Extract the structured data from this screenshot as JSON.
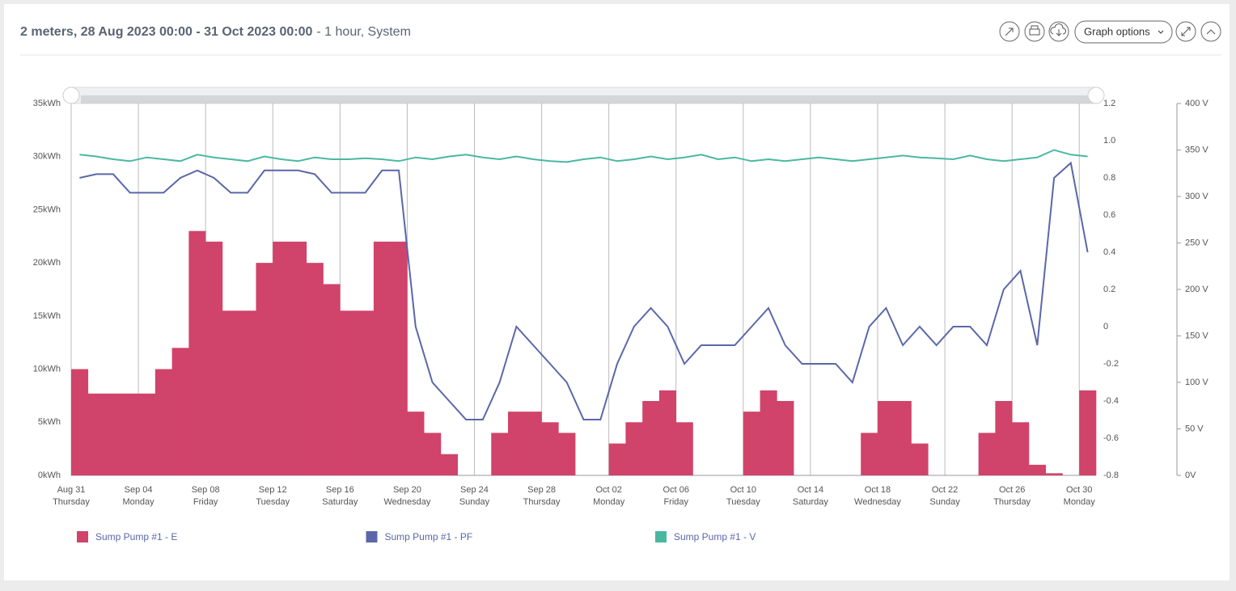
{
  "header": {
    "title_main": "2 meters, 28 Aug 2023 00:00 - 31 Oct 2023 00:00",
    "title_detail": "- 1 hour, System",
    "graph_options_button": "Graph options"
  },
  "chart_data": {
    "type": "combo",
    "categories": [
      "Aug 31",
      null,
      null,
      null,
      "Sep 04",
      null,
      null,
      null,
      "Sep 08",
      null,
      null,
      null,
      "Sep 12",
      null,
      null,
      null,
      "Sep 16",
      null,
      null,
      null,
      "Sep 20",
      null,
      null,
      null,
      "Sep 24",
      null,
      null,
      null,
      "Sep 28",
      null,
      null,
      null,
      "Oct 02",
      null,
      null,
      null,
      "Oct 06",
      null,
      null,
      null,
      "Oct 10",
      null,
      null,
      null,
      "Oct 14",
      null,
      null,
      null,
      "Oct 18",
      null,
      null,
      null,
      "Oct 22",
      null,
      null,
      null,
      "Oct 26",
      null,
      null,
      null,
      "Oct 30"
    ],
    "weekdays": [
      "Thursday",
      null,
      null,
      null,
      "Monday",
      null,
      null,
      null,
      "Friday",
      null,
      null,
      null,
      "Tuesday",
      null,
      null,
      null,
      "Saturday",
      null,
      null,
      null,
      "Wednesday",
      null,
      null,
      null,
      "Sunday",
      null,
      null,
      null,
      "Thursday",
      null,
      null,
      null,
      "Monday",
      null,
      null,
      null,
      "Friday",
      null,
      null,
      null,
      "Tuesday",
      null,
      null,
      null,
      "Saturday",
      null,
      null,
      null,
      "Wednesday",
      null,
      null,
      null,
      "Sunday",
      null,
      null,
      null,
      "Thursday",
      null,
      null,
      null,
      "Monday"
    ],
    "series": [
      {
        "name": "Sump Pump #1 - E",
        "type": "bar",
        "axis": "y",
        "color": "#d0436a",
        "values": [
          10,
          7.7,
          7.7,
          7.7,
          7.7,
          10,
          12,
          23,
          22,
          15.5,
          15.5,
          20,
          22,
          22,
          20,
          18,
          15.5,
          15.5,
          22,
          22,
          6,
          4,
          2,
          0,
          0,
          4,
          6,
          6,
          5,
          4,
          0,
          0,
          3,
          5,
          7,
          8,
          5,
          0,
          0,
          0,
          6,
          8,
          7,
          0,
          0,
          0,
          0,
          4,
          7,
          7,
          3,
          0,
          0,
          0,
          4,
          7,
          5,
          1,
          0.2,
          0,
          8
        ]
      },
      {
        "name": "Sump Pump #1 - PF",
        "type": "line",
        "axis": "y2",
        "color": "#5b67a8",
        "values": [
          0.8,
          0.82,
          0.82,
          0.72,
          0.72,
          0.72,
          0.8,
          0.84,
          0.8,
          0.72,
          0.72,
          0.84,
          0.84,
          0.84,
          0.82,
          0.72,
          0.72,
          0.72,
          0.84,
          0.84,
          0,
          -0.3,
          -0.4,
          -0.5,
          -0.5,
          -0.3,
          0,
          -0.1,
          -0.2,
          -0.3,
          -0.5,
          -0.5,
          -0.2,
          0,
          0.1,
          0,
          -0.2,
          -0.1,
          -0.1,
          -0.1,
          0,
          0.1,
          -0.1,
          -0.2,
          -0.2,
          -0.2,
          -0.3,
          0,
          0.1,
          -0.1,
          0,
          -0.1,
          0,
          0,
          -0.1,
          0.2,
          0.3,
          -0.1,
          0.8,
          0.88,
          0.4
        ]
      },
      {
        "name": "Sump Pump #1 - V",
        "type": "line",
        "axis": "y3",
        "color": "#4ab8a0",
        "values": [
          345,
          343,
          340,
          338,
          342,
          340,
          338,
          345,
          342,
          340,
          338,
          343,
          340,
          338,
          342,
          340,
          340,
          341,
          340,
          338,
          342,
          340,
          343,
          345,
          342,
          340,
          343,
          340,
          338,
          337,
          340,
          342,
          338,
          340,
          343,
          340,
          342,
          345,
          340,
          342,
          338,
          340,
          338,
          340,
          342,
          340,
          338,
          340,
          342,
          344,
          342,
          341,
          340,
          344,
          340,
          338,
          340,
          342,
          350,
          345,
          343
        ]
      }
    ],
    "ylim": [
      0,
      35
    ],
    "yticks": [
      {
        "value": 0,
        "label": "0kWh"
      },
      {
        "value": 5,
        "label": "5kWh"
      },
      {
        "value": 10,
        "label": "10kWh"
      },
      {
        "value": 15,
        "label": "15kWh"
      },
      {
        "value": 20,
        "label": "20kWh"
      },
      {
        "value": 25,
        "label": "25kWh"
      },
      {
        "value": 30,
        "label": "30kWh"
      },
      {
        "value": 35,
        "label": "35kWh"
      }
    ],
    "y2lim": [
      -0.8,
      1.2
    ],
    "y2ticks": [
      -0.8,
      -0.6,
      -0.4,
      -0.2,
      0,
      0.2,
      0.4,
      0.6,
      0.8,
      {
        "value": 1,
        "label": "1.0"
      },
      1.2
    ],
    "y3lim": [
      0,
      400
    ],
    "y3ticks": [
      {
        "value": 0,
        "label": "0V"
      },
      {
        "value": 50,
        "label": "50 V"
      },
      {
        "value": 100,
        "label": "100 V"
      },
      {
        "value": 150,
        "label": "150 V"
      },
      {
        "value": 200,
        "label": "200 V"
      },
      {
        "value": 250,
        "label": "250 V"
      },
      {
        "value": 300,
        "label": "300 V"
      },
      {
        "value": 350,
        "label": "350 V"
      },
      {
        "value": 400,
        "label": "400 V"
      }
    ],
    "grid": true
  }
}
